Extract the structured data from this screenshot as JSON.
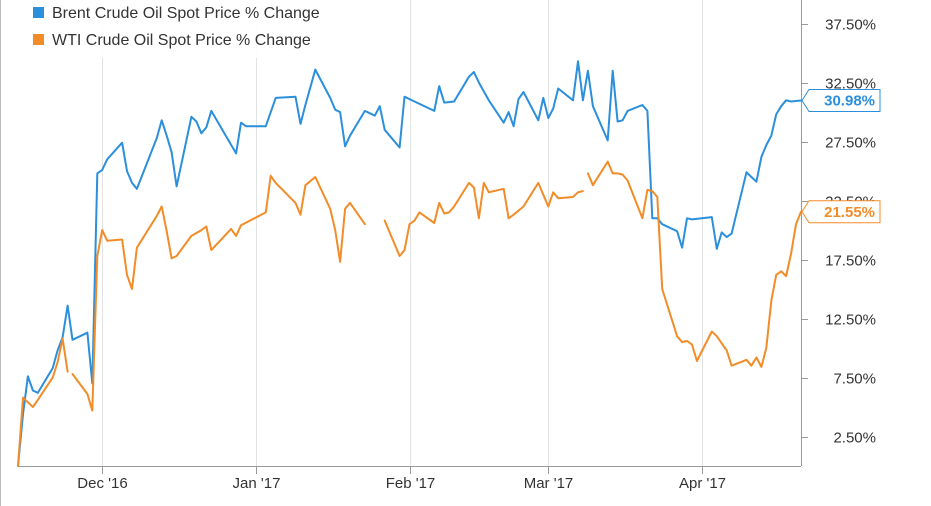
{
  "chart_data": {
    "type": "line",
    "title": "",
    "xlabel": "",
    "ylabel": "",
    "x_tick_labels": [
      "Dec '16",
      "Jan '17",
      "Feb '17",
      "Mar '17",
      "Apr '17"
    ],
    "y_ticks": [
      2.5,
      7.5,
      12.5,
      17.5,
      22.5,
      27.5,
      32.5,
      37.5
    ],
    "y_tick_labels": [
      "2.50%",
      "7.50%",
      "12.50%",
      "17.50%",
      "22.50%",
      "27.50%",
      "32.50%",
      "37.50%"
    ],
    "ylim": [
      0,
      39.5
    ],
    "xlim": [
      "2016-11-14",
      "2017-04-21"
    ],
    "grid": {
      "x": true,
      "y": false
    },
    "legend_position": "top-left",
    "series": [
      {
        "name": "Brent Crude Oil Spot Price % Change",
        "color": "#2b8fdc",
        "end_label": "30.98%",
        "points": [
          [
            "2016-11-14",
            0.0
          ],
          [
            "2016-11-15",
            4.4
          ],
          [
            "2016-11-16",
            7.6
          ],
          [
            "2016-11-17",
            6.4
          ],
          [
            "2016-11-18",
            6.2
          ],
          [
            "2016-11-21",
            8.3
          ],
          [
            "2016-11-22",
            9.8
          ],
          [
            "2016-11-23",
            10.9
          ],
          [
            "2016-11-24",
            13.6
          ],
          [
            "2016-11-25",
            10.7
          ],
          [
            "2016-11-28",
            11.3
          ],
          [
            "2016-11-29",
            7.0
          ],
          [
            "2016-11-30",
            24.8
          ],
          [
            "2016-12-01",
            25.1
          ],
          [
            "2016-12-02",
            26.0
          ],
          [
            "2016-12-05",
            27.4
          ],
          [
            "2016-12-06",
            25.0
          ],
          [
            "2016-12-07",
            24.0
          ],
          [
            "2016-12-08",
            23.5
          ],
          [
            "2016-12-12",
            27.8
          ],
          [
            "2016-12-13",
            29.3
          ],
          [
            "2016-12-14",
            28.0
          ],
          [
            "2016-12-15",
            26.6
          ],
          [
            "2016-12-16",
            23.7
          ],
          [
            "2016-12-19",
            29.6
          ],
          [
            "2016-12-20",
            29.2
          ],
          [
            "2016-12-21",
            28.2
          ],
          [
            "2016-12-22",
            28.7
          ],
          [
            "2016-12-23",
            30.1
          ],
          [
            "2016-12-28",
            26.5
          ],
          [
            "2016-12-29",
            29.1
          ],
          [
            "2016-12-30",
            28.8
          ],
          [
            "2017-01-03",
            28.8
          ],
          [
            "2017-01-05",
            31.2
          ],
          [
            "2017-01-09",
            31.3
          ],
          [
            "2017-01-10",
            29.0
          ],
          [
            "2017-01-11",
            30.6
          ],
          [
            "2017-01-13",
            33.6
          ],
          [
            "2017-01-16",
            31.2
          ],
          [
            "2017-01-17",
            30.2
          ],
          [
            "2017-01-18",
            30.0
          ],
          [
            "2017-01-19",
            27.1
          ],
          [
            "2017-01-20",
            28.0
          ],
          [
            "2017-01-23",
            30.1
          ],
          [
            "2017-01-24",
            29.9
          ],
          [
            "2017-01-25",
            29.7
          ],
          [
            "2017-01-26",
            30.5
          ],
          [
            "2017-01-27",
            28.5
          ],
          [
            "2017-01-30",
            27.0
          ],
          [
            "2017-01-31",
            31.3
          ],
          [
            "2017-02-02",
            30.9
          ],
          [
            "2017-02-06",
            30.1
          ],
          [
            "2017-02-07",
            32.2
          ],
          [
            "2017-02-08",
            30.8
          ],
          [
            "2017-02-10",
            30.9
          ],
          [
            "2017-02-13",
            33.0
          ],
          [
            "2017-02-14",
            33.4
          ],
          [
            "2017-02-15",
            32.5
          ],
          [
            "2017-02-17",
            31.0
          ],
          [
            "2017-02-20",
            29.1
          ],
          [
            "2017-02-21",
            30.0
          ],
          [
            "2017-02-22",
            28.8
          ],
          [
            "2017-02-23",
            31.1
          ],
          [
            "2017-02-24",
            31.7
          ],
          [
            "2017-02-27",
            29.3
          ],
          [
            "2017-02-28",
            31.2
          ],
          [
            "2017-03-01",
            29.5
          ],
          [
            "2017-03-02",
            30.3
          ],
          [
            "2017-03-03",
            32.0
          ],
          [
            "2017-03-06",
            31.0
          ],
          [
            "2017-03-07",
            34.3
          ],
          [
            "2017-03-08",
            31.0
          ],
          [
            "2017-03-09",
            33.5
          ],
          [
            "2017-03-10",
            30.5
          ],
          [
            "2017-03-13",
            27.6
          ],
          [
            "2017-03-14",
            33.5
          ],
          [
            "2017-03-15",
            29.2
          ],
          [
            "2017-03-16",
            29.3
          ],
          [
            "2017-03-17",
            30.1
          ],
          [
            "2017-03-20",
            30.6
          ],
          [
            "2017-03-21",
            30.1
          ],
          [
            "2017-03-22",
            21.0
          ],
          [
            "2017-03-23",
            21.0
          ],
          [
            "2017-03-24",
            20.5
          ],
          [
            "2017-03-27",
            19.9
          ],
          [
            "2017-03-28",
            18.5
          ],
          [
            "2017-03-29",
            21.0
          ],
          [
            "2017-03-30",
            20.9
          ],
          [
            "2017-04-03",
            21.1
          ],
          [
            "2017-04-04",
            18.4
          ],
          [
            "2017-04-05",
            19.8
          ],
          [
            "2017-04-06",
            19.4
          ],
          [
            "2017-04-07",
            19.7
          ],
          [
            "2017-04-10",
            24.9
          ],
          [
            "2017-04-11",
            24.5
          ],
          [
            "2017-04-12",
            24.1
          ],
          [
            "2017-04-13",
            26.2
          ],
          [
            "2017-04-14",
            27.2
          ],
          [
            "2017-04-15",
            28.0
          ],
          [
            "2017-04-16",
            29.8
          ],
          [
            "2017-04-17",
            30.5
          ],
          [
            "2017-04-18",
            31.0
          ],
          [
            "2017-04-19",
            30.9
          ],
          [
            "2017-04-21",
            30.98
          ]
        ]
      },
      {
        "name": "WTI Crude Oil Spot Price % Change",
        "color": "#f28c28",
        "end_label": "21.55%",
        "points": [
          [
            "2016-11-14",
            0.0
          ],
          [
            "2016-11-15",
            5.8
          ],
          [
            "2016-11-16",
            5.4
          ],
          [
            "2016-11-17",
            5.0
          ],
          [
            "2016-11-18",
            5.6
          ],
          [
            "2016-11-21",
            7.5
          ],
          [
            "2016-11-22",
            8.8
          ],
          [
            "2016-11-23",
            10.8
          ],
          [
            "2016-11-24",
            8.0
          ],
          null,
          [
            "2016-11-25",
            7.8
          ],
          [
            "2016-11-28",
            6.1
          ],
          [
            "2016-11-29",
            4.7
          ],
          [
            "2016-11-30",
            17.8
          ],
          [
            "2016-12-01",
            20.0
          ],
          [
            "2016-12-02",
            19.1
          ],
          [
            "2016-12-05",
            19.2
          ],
          [
            "2016-12-06",
            16.2
          ],
          [
            "2016-12-07",
            15.0
          ],
          [
            "2016-12-08",
            18.5
          ],
          [
            "2016-12-12",
            21.2
          ],
          [
            "2016-12-13",
            22.0
          ],
          [
            "2016-12-14",
            19.9
          ],
          [
            "2016-12-15",
            17.6
          ],
          [
            "2016-12-16",
            17.8
          ],
          [
            "2016-12-19",
            19.5
          ],
          [
            "2016-12-21",
            20.0
          ],
          [
            "2016-12-22",
            20.3
          ],
          [
            "2016-12-23",
            18.3
          ],
          [
            "2016-12-27",
            20.1
          ],
          [
            "2016-12-28",
            19.5
          ],
          [
            "2016-12-29",
            20.4
          ],
          [
            "2017-01-03",
            21.5
          ],
          [
            "2017-01-04",
            24.6
          ],
          [
            "2017-01-05",
            24.0
          ],
          [
            "2017-01-09",
            22.3
          ],
          [
            "2017-01-10",
            21.3
          ],
          [
            "2017-01-11",
            23.8
          ],
          [
            "2017-01-13",
            24.5
          ],
          [
            "2017-01-16",
            21.8
          ],
          [
            "2017-01-17",
            20.0
          ],
          [
            "2017-01-18",
            17.3
          ],
          [
            "2017-01-19",
            21.8
          ],
          [
            "2017-01-20",
            22.3
          ],
          [
            "2017-01-23",
            20.5
          ],
          null,
          [
            "2017-01-27",
            20.8
          ],
          [
            "2017-01-30",
            17.8
          ],
          [
            "2017-01-31",
            18.3
          ],
          [
            "2017-02-01",
            20.5
          ],
          [
            "2017-02-02",
            20.8
          ],
          [
            "2017-02-03",
            21.5
          ],
          [
            "2017-02-06",
            20.6
          ],
          [
            "2017-02-07",
            22.3
          ],
          [
            "2017-02-08",
            21.4
          ],
          [
            "2017-02-09",
            21.5
          ],
          [
            "2017-02-10",
            22.0
          ],
          [
            "2017-02-13",
            24.0
          ],
          [
            "2017-02-14",
            23.6
          ],
          [
            "2017-02-15",
            21.0
          ],
          [
            "2017-02-16",
            24.0
          ],
          [
            "2017-02-17",
            23.2
          ],
          [
            "2017-02-20",
            23.5
          ],
          [
            "2017-02-21",
            21.0
          ],
          [
            "2017-02-22",
            21.3
          ],
          [
            "2017-02-24",
            22.0
          ],
          [
            "2017-02-27",
            24.0
          ],
          [
            "2017-02-28",
            23.0
          ],
          [
            "2017-03-01",
            22.0
          ],
          [
            "2017-03-02",
            23.2
          ],
          [
            "2017-03-03",
            22.7
          ],
          [
            "2017-03-06",
            22.8
          ],
          [
            "2017-03-07",
            23.2
          ],
          [
            "2017-03-08",
            23.3
          ],
          null,
          [
            "2017-03-09",
            24.8
          ],
          [
            "2017-03-10",
            23.8
          ],
          [
            "2017-03-13",
            25.8
          ],
          [
            "2017-03-14",
            24.8
          ],
          [
            "2017-03-15",
            24.8
          ],
          [
            "2017-03-16",
            24.7
          ],
          [
            "2017-03-17",
            24.2
          ],
          [
            "2017-03-20",
            21.0
          ],
          [
            "2017-03-21",
            23.4
          ],
          [
            "2017-03-22",
            23.3
          ],
          [
            "2017-03-23",
            22.8
          ],
          [
            "2017-03-24",
            15.0
          ],
          [
            "2017-03-27",
            11.0
          ],
          [
            "2017-03-28",
            10.5
          ],
          [
            "2017-03-29",
            10.6
          ],
          [
            "2017-03-30",
            10.3
          ],
          [
            "2017-03-31",
            8.9
          ],
          [
            "2017-04-03",
            11.4
          ],
          [
            "2017-04-04",
            11.0
          ],
          [
            "2017-04-05",
            10.4
          ],
          [
            "2017-04-06",
            9.8
          ],
          [
            "2017-04-07",
            8.5
          ],
          [
            "2017-04-10",
            9.0
          ],
          [
            "2017-04-11",
            8.5
          ],
          [
            "2017-04-12",
            9.2
          ],
          [
            "2017-04-13",
            8.4
          ],
          [
            "2017-04-14",
            10.0
          ],
          [
            "2017-04-15",
            14.0
          ],
          [
            "2017-04-16",
            16.2
          ],
          [
            "2017-04-17",
            16.5
          ],
          [
            "2017-04-18",
            16.1
          ],
          [
            "2017-04-19",
            18.0
          ],
          [
            "2017-04-20",
            20.5
          ],
          [
            "2017-04-21",
            21.55
          ]
        ]
      }
    ]
  }
}
